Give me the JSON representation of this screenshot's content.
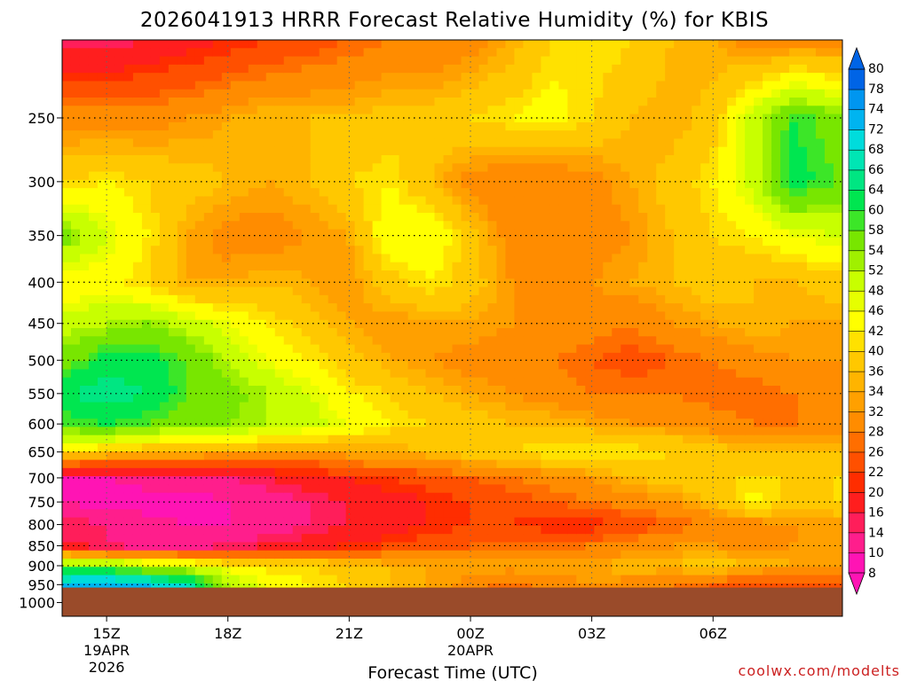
{
  "chart_data": {
    "type": "heatmap",
    "title": "2026041913 HRRR Forecast Relative Humidity (%) for KBIS",
    "xlabel": "Forecast Time (UTC)",
    "ylabel": "",
    "y_scale": "log-pressure (hPa, inverted)",
    "ylim": [
      1040,
      200
    ],
    "y_ticks": [
      250,
      300,
      350,
      400,
      450,
      500,
      550,
      600,
      650,
      700,
      750,
      800,
      850,
      900,
      950,
      1000
    ],
    "x_ticks": [
      {
        "label": "15Z",
        "sub": [
          "19APR",
          "2026"
        ]
      },
      {
        "label": "18Z",
        "sub": []
      },
      {
        "label": "21Z",
        "sub": []
      },
      {
        "label": "00Z",
        "sub": [
          "20APR"
        ]
      },
      {
        "label": "03Z",
        "sub": []
      },
      {
        "label": "06Z",
        "sub": []
      }
    ],
    "grid": true,
    "colorbar": {
      "levels": [
        8,
        10,
        14,
        16,
        20,
        22,
        26,
        28,
        32,
        34,
        36,
        40,
        42,
        46,
        48,
        52,
        54,
        58,
        60,
        64,
        66,
        68,
        72,
        74,
        78,
        80
      ],
      "colors": [
        "#ff14b4",
        "#ff1e8c",
        "#ff1e5a",
        "#ff1e1e",
        "#ff2d00",
        "#ff5000",
        "#ff6e00",
        "#ff8c00",
        "#ffa000",
        "#ffb400",
        "#ffc800",
        "#ffe100",
        "#ffff00",
        "#e6ff00",
        "#c8ff00",
        "#a0f000",
        "#78e600",
        "#3ce628",
        "#00e650",
        "#00e682",
        "#00e6b4",
        "#00dcdc",
        "#00b4f0",
        "#0096f0",
        "#0064e6"
      ]
    },
    "below_ground_color": "#9a4b2a",
    "hours_from_start": [
      -1.0,
      0,
      1,
      2,
      3,
      4,
      5,
      6,
      7,
      8,
      9,
      10,
      11,
      12,
      13,
      14,
      15,
      16,
      17,
      18
    ],
    "rh_profiles_levels_hPa": [
      200,
      250,
      300,
      350,
      400,
      450,
      500,
      550,
      600,
      650,
      700,
      750,
      800,
      850,
      900,
      950
    ],
    "rh_profiles": [
      [
        14,
        30,
        40,
        56,
        42,
        50,
        56,
        64,
        58,
        40,
        10,
        10,
        16,
        16,
        58,
        72
      ],
      [
        14,
        30,
        42,
        48,
        44,
        52,
        62,
        66,
        60,
        38,
        10,
        8,
        14,
        14,
        56,
        74
      ],
      [
        16,
        30,
        40,
        42,
        40,
        54,
        62,
        64,
        58,
        36,
        12,
        8,
        12,
        12,
        52,
        72
      ],
      [
        18,
        32,
        38,
        34,
        34,
        50,
        58,
        58,
        56,
        36,
        12,
        8,
        10,
        12,
        48,
        68
      ],
      [
        20,
        34,
        36,
        30,
        34,
        46,
        52,
        56,
        54,
        34,
        14,
        10,
        10,
        14,
        44,
        52
      ],
      [
        22,
        36,
        34,
        30,
        36,
        42,
        46,
        52,
        52,
        32,
        16,
        12,
        12,
        16,
        40,
        46
      ],
      [
        24,
        36,
        36,
        32,
        34,
        38,
        42,
        48,
        50,
        32,
        18,
        14,
        14,
        18,
        40,
        42
      ],
      [
        26,
        36,
        40,
        34,
        32,
        34,
        38,
        42,
        46,
        34,
        20,
        16,
        16,
        20,
        38,
        40
      ],
      [
        28,
        38,
        42,
        46,
        38,
        32,
        34,
        40,
        42,
        34,
        22,
        18,
        18,
        22,
        36,
        36
      ],
      [
        28,
        38,
        36,
        46,
        42,
        34,
        32,
        36,
        40,
        36,
        24,
        20,
        20,
        24,
        34,
        34
      ],
      [
        30,
        40,
        30,
        38,
        38,
        34,
        30,
        34,
        38,
        38,
        26,
        22,
        22,
        26,
        34,
        30
      ],
      [
        34,
        42,
        28,
        30,
        32,
        32,
        30,
        32,
        36,
        40,
        28,
        24,
        22,
        26,
        34,
        26
      ],
      [
        40,
        44,
        28,
        28,
        30,
        32,
        28,
        30,
        36,
        42,
        30,
        26,
        20,
        26,
        34,
        30
      ],
      [
        42,
        40,
        30,
        30,
        32,
        30,
        26,
        28,
        34,
        42,
        32,
        28,
        20,
        28,
        34,
        32
      ],
      [
        40,
        36,
        34,
        32,
        34,
        28,
        24,
        28,
        32,
        42,
        36,
        30,
        24,
        30,
        36,
        30
      ],
      [
        36,
        34,
        38,
        36,
        36,
        32,
        26,
        28,
        32,
        40,
        38,
        32,
        26,
        32,
        36,
        28
      ],
      [
        34,
        38,
        42,
        40,
        38,
        34,
        28,
        26,
        30,
        38,
        40,
        36,
        28,
        32,
        38,
        26
      ],
      [
        30,
        50,
        50,
        42,
        36,
        36,
        30,
        26,
        28,
        36,
        40,
        44,
        30,
        30,
        36,
        22
      ],
      [
        30,
        60,
        62,
        46,
        36,
        34,
        32,
        28,
        28,
        36,
        40,
        38,
        32,
        32,
        34,
        24
      ],
      [
        30,
        56,
        58,
        48,
        38,
        34,
        32,
        30,
        28,
        36,
        40,
        40,
        32,
        32,
        34,
        24
      ]
    ],
    "surface_pressure_hPa": 958
  },
  "credit": "coolwx.com/modelts"
}
